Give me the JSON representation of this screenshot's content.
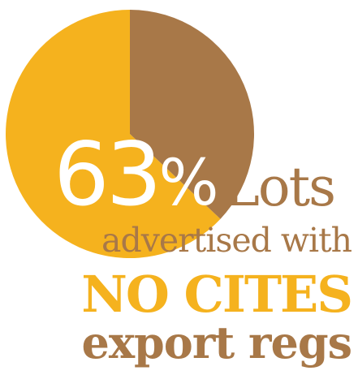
{
  "chart_data": {
    "type": "pie",
    "title": "",
    "slices": [
      {
        "label": "Lots advertised with NO CITES export regs",
        "value": 63,
        "color": "#f5b21e"
      },
      {
        "label": "",
        "value": 37,
        "color": "#a87848"
      }
    ]
  },
  "infographic": {
    "percent_number": "63",
    "percent_symbol": "%",
    "lots": "Lots",
    "line1": "advertised with",
    "line2": "NO CITES",
    "line3": "export regs"
  }
}
